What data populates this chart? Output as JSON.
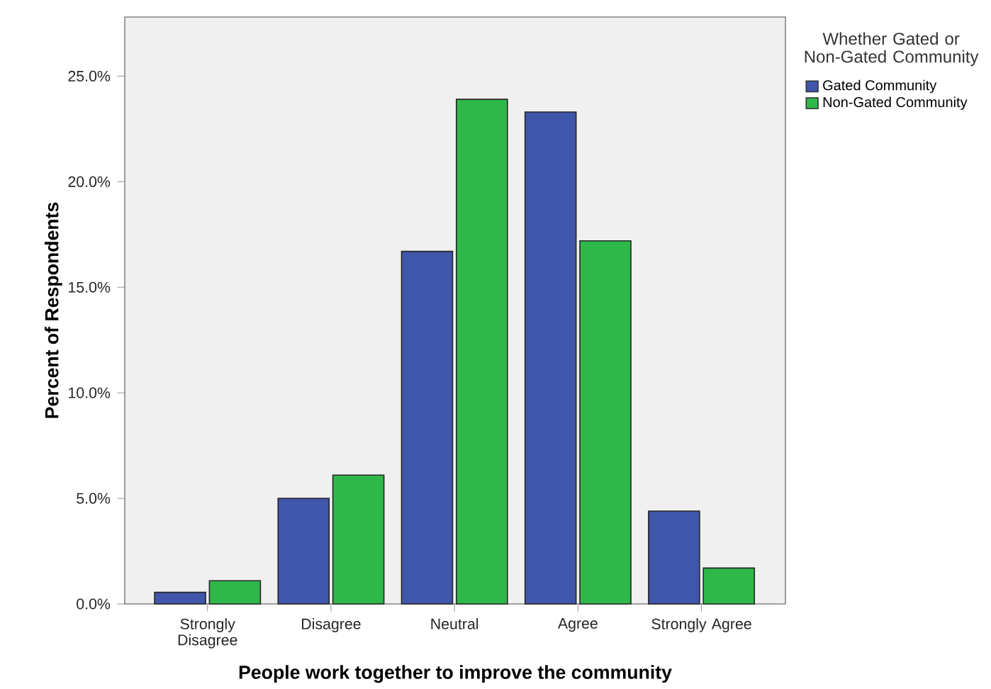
{
  "chart_data": {
    "type": "bar",
    "xlabel": "People work together to improve the community",
    "ylabel": "Percent of Respondents",
    "legend_title": "Whether Gated or Non-Gated Community",
    "categories": [
      "Strongly Disagree",
      "Disagree",
      "Neutral",
      "Agree",
      "Strongly Agree"
    ],
    "series": [
      {
        "name": "Gated Community",
        "color": "#3f56aa",
        "values": [
          0.55,
          5.0,
          16.7,
          23.3,
          4.4
        ]
      },
      {
        "name": "Non-Gated Community",
        "color": "#2fb84a",
        "values": [
          1.1,
          6.1,
          23.9,
          17.2,
          1.7
        ]
      }
    ],
    "ylim": [
      0,
      27.8
    ],
    "yticks": [
      {
        "value": 0,
        "label": "0.0%"
      },
      {
        "value": 5,
        "label": "5.0%"
      },
      {
        "value": 10,
        "label": "10.0%"
      },
      {
        "value": 15,
        "label": "15.0%"
      },
      {
        "value": 20,
        "label": "20.0%"
      },
      {
        "value": 25,
        "label": "25.0%"
      }
    ],
    "grid": false,
    "legend": "right"
  }
}
